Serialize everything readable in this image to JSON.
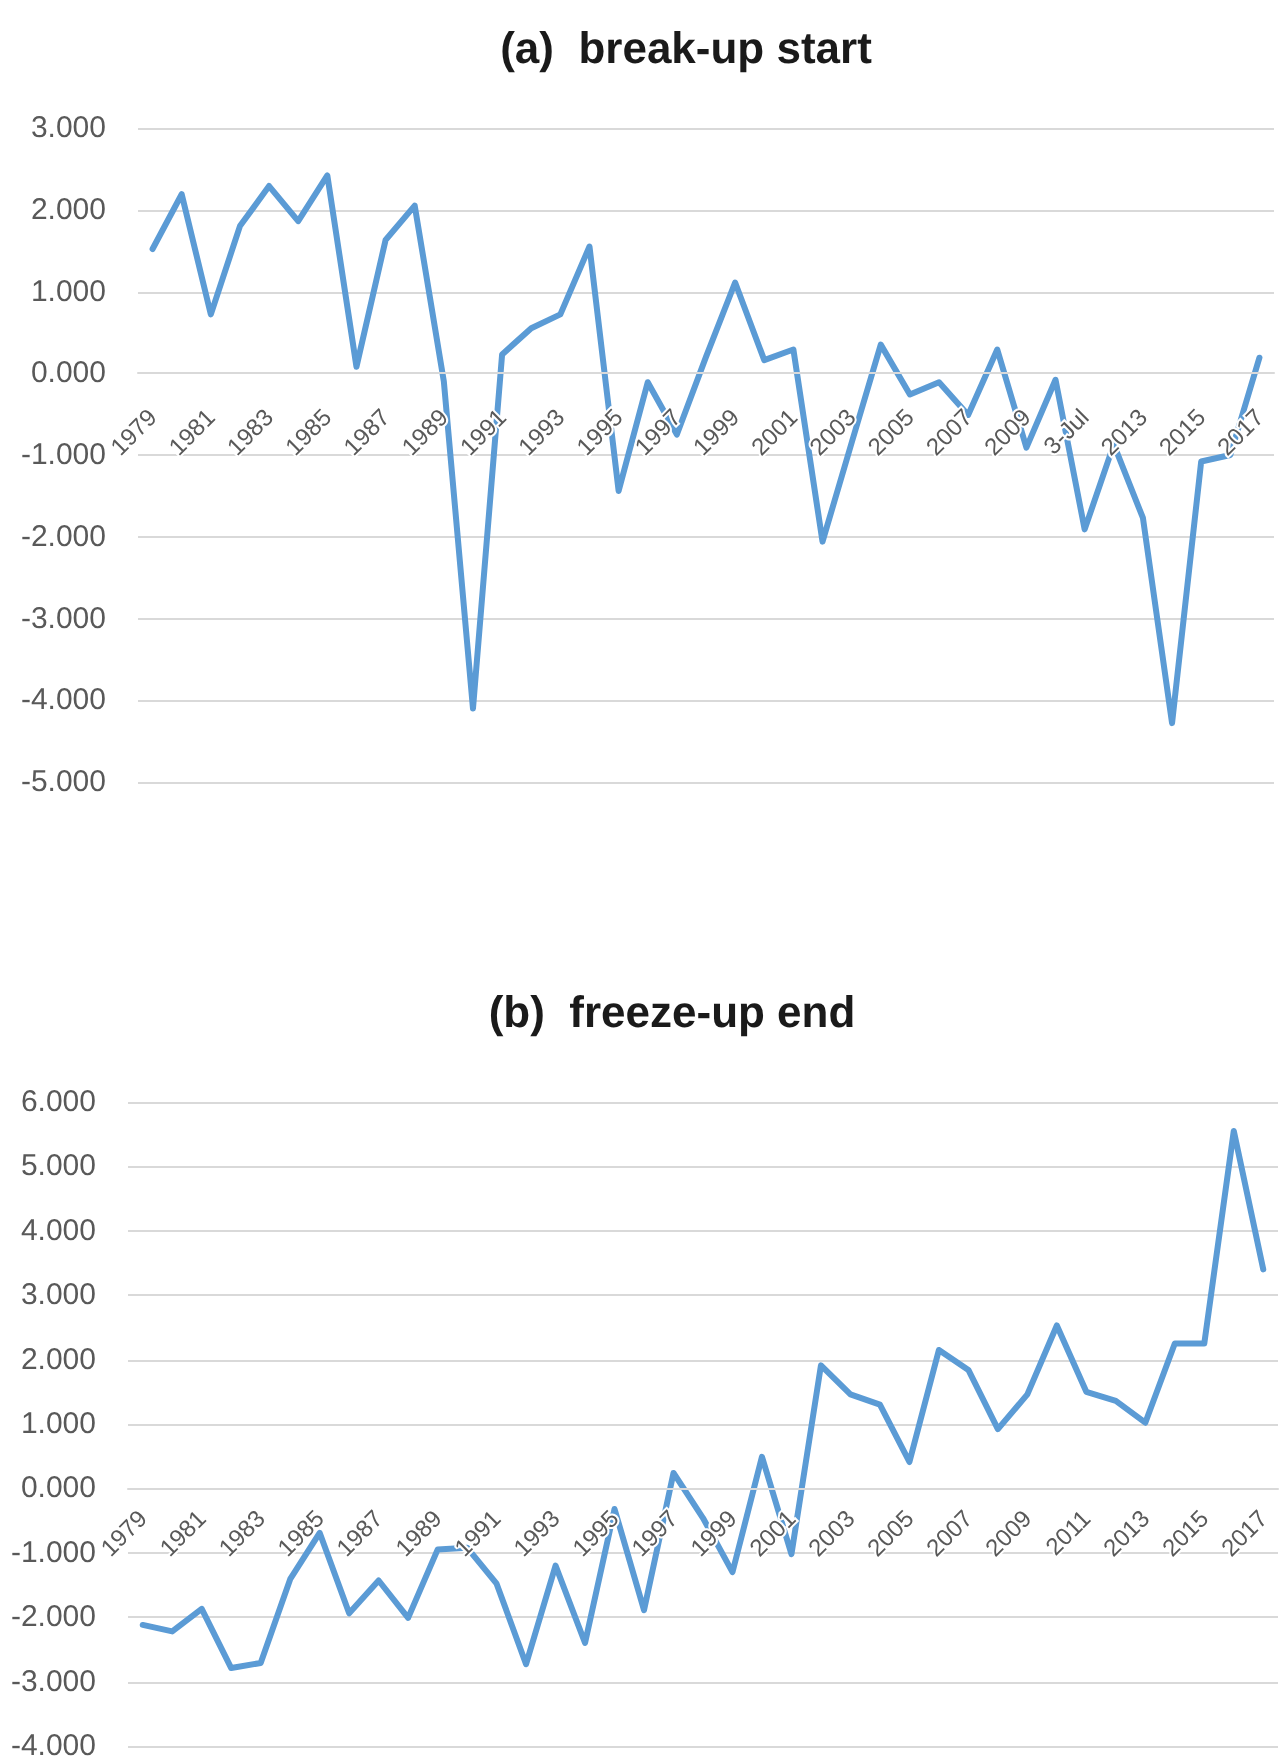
{
  "chart_data": [
    {
      "type": "line",
      "title": "(a)  break-up start",
      "categories": [
        "1979",
        null,
        "1981",
        null,
        "1983",
        null,
        "1985",
        null,
        "1987",
        null,
        "1989",
        null,
        "1991",
        null,
        "1993",
        null,
        "1995",
        null,
        "1997",
        null,
        "1999",
        null,
        "2001",
        null,
        "2003",
        null,
        "2005",
        null,
        "2007",
        null,
        "2009",
        null,
        "3-Jul",
        null,
        "2013",
        null,
        "2015",
        null,
        "2017"
      ],
      "values": [
        1.52,
        2.19,
        0.72,
        1.8,
        2.29,
        1.86,
        2.42,
        0.08,
        1.63,
        2.05,
        -0.1,
        -4.1,
        0.23,
        0.55,
        0.72,
        1.55,
        -1.44,
        -0.11,
        -0.75,
        0.2,
        1.11,
        0.16,
        0.29,
        -2.06,
        -0.85,
        0.35,
        -0.26,
        -0.11,
        -0.51,
        0.29,
        -0.91,
        -0.08,
        -1.91,
        -0.87,
        -1.77,
        -4.28,
        -1.08,
        -1.0,
        0.19
      ],
      "color": "#5b9bd5",
      "ylim": [
        -5,
        3
      ],
      "yticks": [
        {
          "value": -5,
          "label": "-5.000"
        },
        {
          "value": -4,
          "label": "-4.000"
        },
        {
          "value": -3,
          "label": "-3.000"
        },
        {
          "value": -2,
          "label": "-2.000"
        },
        {
          "value": -1,
          "label": "-1.000"
        },
        {
          "value": 0,
          "label": "0.000"
        },
        {
          "value": 1,
          "label": "1.000"
        },
        {
          "value": 2,
          "label": "2.000"
        },
        {
          "value": 3,
          "label": "3.000"
        }
      ],
      "grid": "y"
    },
    {
      "type": "line",
      "title": "(b)  freeze-up end",
      "categories": [
        "1979",
        null,
        "1981",
        null,
        "1983",
        null,
        "1985",
        null,
        "1987",
        null,
        "1989",
        null,
        "1991",
        null,
        "1993",
        null,
        "1995",
        null,
        "1997",
        null,
        "1999",
        null,
        "2001",
        null,
        "2003",
        null,
        "2005",
        null,
        "2007",
        null,
        "2009",
        null,
        "2011",
        null,
        "2013",
        null,
        "2015",
        null,
        "2017"
      ],
      "values": [
        -2.12,
        -2.22,
        -1.87,
        -2.79,
        -2.71,
        -1.41,
        -0.69,
        -1.94,
        -1.43,
        -2.01,
        -0.95,
        -0.92,
        -1.48,
        -2.73,
        -1.2,
        -2.4,
        -0.32,
        -1.89,
        0.24,
        -0.46,
        -1.3,
        0.49,
        -1.02,
        1.91,
        1.46,
        1.3,
        0.41,
        2.15,
        1.84,
        0.92,
        1.46,
        2.53,
        1.5,
        1.36,
        1.02,
        2.25,
        2.25,
        5.55,
        3.4
      ],
      "color": "#5b9bd5",
      "ylim": [
        -4,
        6
      ],
      "yticks": [
        {
          "value": -4,
          "label": "-4.000"
        },
        {
          "value": -3,
          "label": "-3.000"
        },
        {
          "value": -2,
          "label": "-2.000"
        },
        {
          "value": -1,
          "label": "-1.000"
        },
        {
          "value": 0,
          "label": "0.000"
        },
        {
          "value": 1,
          "label": "1.000"
        },
        {
          "value": 2,
          "label": "2.000"
        },
        {
          "value": 3,
          "label": "3.000"
        },
        {
          "value": 4,
          "label": "4.000"
        },
        {
          "value": 5,
          "label": "5.000"
        },
        {
          "value": 6,
          "label": "6.000"
        }
      ],
      "grid": "y"
    }
  ]
}
